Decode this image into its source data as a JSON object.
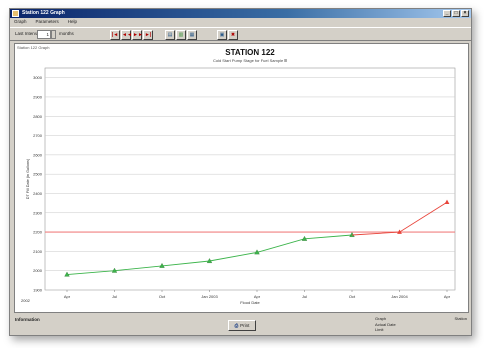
{
  "window": {
    "title": "Station 122 Graph",
    "controls": [
      "_",
      "□",
      "×"
    ]
  },
  "menu": [
    "Graph",
    "Parameters",
    "Help"
  ],
  "toolbar": {
    "label": "Last Interval",
    "value": "1",
    "unit": "months",
    "nav_buttons": [
      "|◄",
      "◄◄",
      "►►",
      "►|"
    ],
    "tool_buttons": [
      "▤",
      "▥",
      "▦",
      "▣",
      "✖"
    ]
  },
  "chart_header": {
    "corner_text": "Station 122 Graph"
  },
  "status": {
    "left_label": "Information",
    "print_label": "Print",
    "print_icon": "printer-icon",
    "right_rows": [
      {
        "label": "Graph",
        "value": "Station"
      },
      {
        "label": "Actual Date",
        "value": ""
      },
      {
        "label": "Limit",
        "value": ""
      }
    ]
  },
  "colors": {
    "series_actual": "#3cb44b",
    "series_forecast": "#e8443a",
    "threshold_line": "#f08080",
    "grid": "#c8c8c8"
  },
  "chart_data": {
    "type": "line",
    "title": "STATION 122",
    "subtitle": "Cold Start Pump Stage for Fuel Sample Ⅲ",
    "xlabel": "Flood Date",
    "ylabel": "DT Fill Date (in Gallons)",
    "ylim": [
      1900,
      3050
    ],
    "y_ticks": [
      "3000",
      "2900",
      "2800",
      "2700",
      "2600",
      "2500",
      "2400",
      "2300",
      "2200",
      "2100",
      "2000",
      "1900"
    ],
    "x_ticks": [
      "Apr",
      "Jul",
      "Oct",
      "Jan 2003",
      "Apr",
      "Jul",
      "Oct",
      "Jan 2004",
      "Apr"
    ],
    "x_axis_corner": "2002",
    "threshold": 2200,
    "series": [
      {
        "points": [
          [
            0,
            1980
          ],
          [
            1,
            2000
          ],
          [
            2,
            2025
          ],
          [
            3,
            2050
          ],
          [
            4,
            2095
          ],
          [
            5,
            2165
          ],
          [
            6,
            2185
          ]
        ]
      },
      {
        "points": [
          [
            6,
            2185
          ],
          [
            7,
            2200
          ],
          [
            8,
            2355
          ]
        ]
      }
    ],
    "grid": true,
    "legend": "none"
  }
}
